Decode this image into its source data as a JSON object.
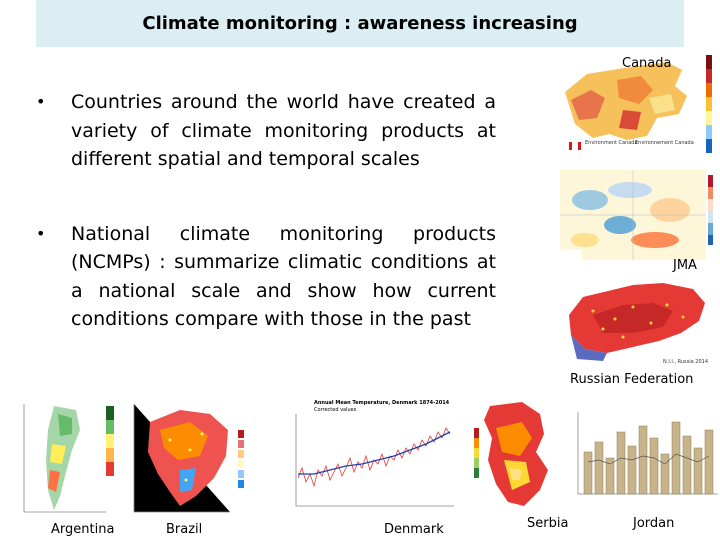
{
  "slide": {
    "title": "Climate monitoring : awareness increasing",
    "bullets": [
      {
        "marker": "•",
        "text": "Countries around the world have created a variety of climate monitoring products at different spatial and temporal scales"
      },
      {
        "marker": "•",
        "text": "National climate monitoring products (NCMPs) : summarize climatic conditions at a national scale and show how current conditions compare with those in the past"
      }
    ]
  },
  "maps": {
    "canada": {
      "label": "Canada",
      "credit_1": "Environment Canada",
      "credit_2": "Environnement Canada"
    },
    "jma": {
      "label": "JMA"
    },
    "russia": {
      "label": "Russian Federation",
      "corner_text": "N.I.I., Russia 2014"
    },
    "argentina": {
      "label": "Argentina"
    },
    "brazil": {
      "label": "Brazil"
    },
    "denmark": {
      "label": "Denmark",
      "chart_title": "Annual Mean Temperature, Denmark 1874-2014",
      "chart_subtitle": "Corrected values"
    },
    "serbia": {
      "label": "Serbia"
    },
    "jordan": {
      "label": "Jordan"
    }
  },
  "colors": {
    "title_bg": "#dbeef4",
    "accent_red": "#d7191c",
    "accent_orange": "#f07d2d",
    "accent_blue": "#2b83ba"
  }
}
